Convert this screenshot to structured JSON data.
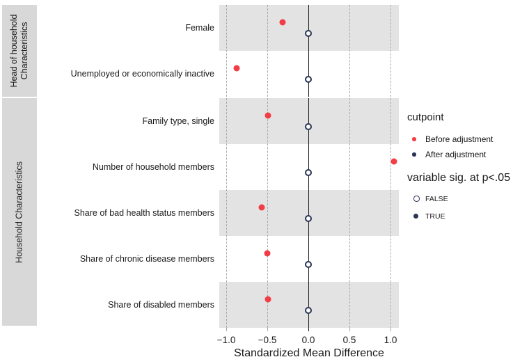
{
  "colors": {
    "before": "#F23D46",
    "after": "#2A3456",
    "band": "#E3E3E3",
    "strip_bg": "#D8D8D8",
    "gridline": "#A9A9A9",
    "zero_line": "#1A1A1A"
  },
  "chart_data": {
    "type": "scatter",
    "variant": "covariate balance love plot, dot plot with facet rows",
    "title": "",
    "xlabel": "Standardized Mean Difference",
    "ylabel": "",
    "xlim": [
      -1.09,
      1.1
    ],
    "x_ticks": [
      -1.0,
      -0.5,
      0.0,
      0.5,
      1.0
    ],
    "x_tick_labels": [
      "−1.0",
      "−0.5",
      "0.0",
      "0.5",
      "1.0"
    ],
    "zero_reference_line": 0.0,
    "grid": "vertical dashed gridlines at ticks, solid black line at 0.0",
    "legend_position": "right",
    "series": [
      {
        "name": "Before adjustment",
        "color": "#F23D46",
        "marker": "filled circle"
      },
      {
        "name": "After adjustment",
        "color": "#2A3456",
        "marker": "open circle when not significant, filled when significant"
      }
    ],
    "facets": [
      {
        "label": "Head of household Characteristics",
        "label_lines": [
          "Head of household",
          "Characteristics"
        ],
        "rows": [
          {
            "variable": "Female",
            "before": -0.31,
            "after": 0.0,
            "before_sig": true,
            "after_sig": false
          },
          {
            "variable": "Unemployed or economically inactive",
            "before": -0.87,
            "after": 0.0,
            "before_sig": true,
            "after_sig": false
          }
        ]
      },
      {
        "label": "Household Characteristics",
        "label_lines": [
          "Household Characteristics"
        ],
        "rows": [
          {
            "variable": "Family type, single",
            "before": -0.49,
            "after": 0.0,
            "before_sig": true,
            "after_sig": false
          },
          {
            "variable": "Number of household members",
            "before": 1.04,
            "after": 0.0,
            "before_sig": true,
            "after_sig": false
          },
          {
            "variable": "Share of bad health status members",
            "before": -0.57,
            "after": 0.0,
            "before_sig": true,
            "after_sig": false
          },
          {
            "variable": "Share of chronic disease members",
            "before": -0.5,
            "after": 0.0,
            "before_sig": true,
            "after_sig": false
          },
          {
            "variable": "Share of disabled members",
            "before": -0.49,
            "after": 0.0,
            "before_sig": true,
            "after_sig": false
          }
        ]
      }
    ]
  },
  "legend": {
    "cutpoint": {
      "title": "cutpoint",
      "items": [
        {
          "label": "Before adjustment",
          "color": "#F23D46",
          "shape": "filled-dot"
        },
        {
          "label": "After adjustment",
          "color": "#2A3456",
          "shape": "filled-dot"
        }
      ]
    },
    "significance": {
      "title": "variable sig. at p<.05",
      "items": [
        {
          "label": "FALSE",
          "shape": "open-circle"
        },
        {
          "label": "TRUE",
          "shape": "filled-dot"
        }
      ]
    }
  }
}
